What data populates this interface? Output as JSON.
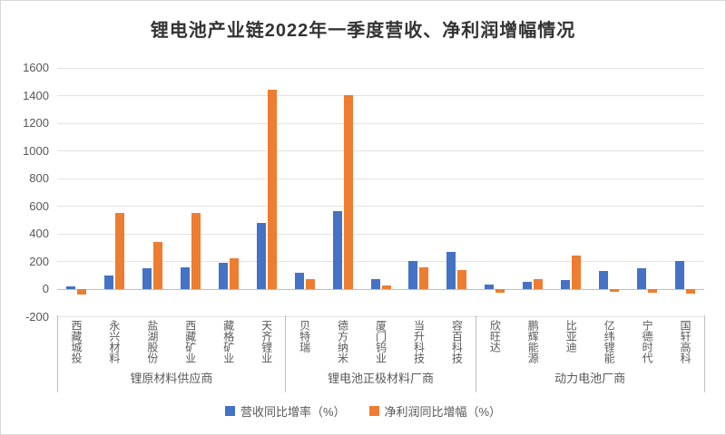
{
  "title": "锂电池产业链2022年一季度营收、净利润增幅情况",
  "chart_data": {
    "type": "bar",
    "title": "锂电池产业链2022年一季度营收、净利润增幅情况",
    "xlabel": "",
    "ylabel": "",
    "ylim": [
      -200,
      1600
    ],
    "ytick_step": 200,
    "grid": true,
    "legend_position": "bottom",
    "colors": {
      "revenue": "#4472C4",
      "profit": "#ED7D31",
      "axis_text": "#595959",
      "gridline": "#e2e2e2",
      "axis_line": "#bfbfbf"
    },
    "categories": [
      "西藏城投",
      "永兴材料",
      "盐湖股份",
      "西藏矿业",
      "藏格矿业",
      "天齐锂业",
      "贝特瑞",
      "德方纳米",
      "厦门钨业",
      "当升科技",
      "容百科技",
      "欣旺达",
      "鹏辉能源",
      "比亚迪",
      "亿纬锂能",
      "宁德时代",
      "国轩高科"
    ],
    "groups": [
      {
        "label": "锂原材料供应商",
        "start": 0,
        "end": 5
      },
      {
        "label": "锂电池正极材料厂商",
        "start": 6,
        "end": 10
      },
      {
        "label": "动力电池厂商",
        "start": 11,
        "end": 16
      }
    ],
    "series": [
      {
        "name": "营收同比增率（%）",
        "color": "#4472C4",
        "values": [
          20,
          100,
          152,
          160,
          190,
          481,
          120,
          562,
          70,
          205,
          270,
          35,
          55,
          63,
          128,
          154,
          203
        ]
      },
      {
        "name": "净利润同比增幅（%）",
        "color": "#ED7D31",
        "values": [
          -40,
          550,
          340,
          550,
          220,
          1442,
          75,
          1403,
          25,
          160,
          140,
          -26,
          70,
          241,
          -19,
          -24,
          -33
        ]
      }
    ],
    "ytick_labels": [
      "-200",
      "0",
      "200",
      "400",
      "600",
      "800",
      "1000",
      "1200",
      "1400",
      "1600"
    ]
  }
}
